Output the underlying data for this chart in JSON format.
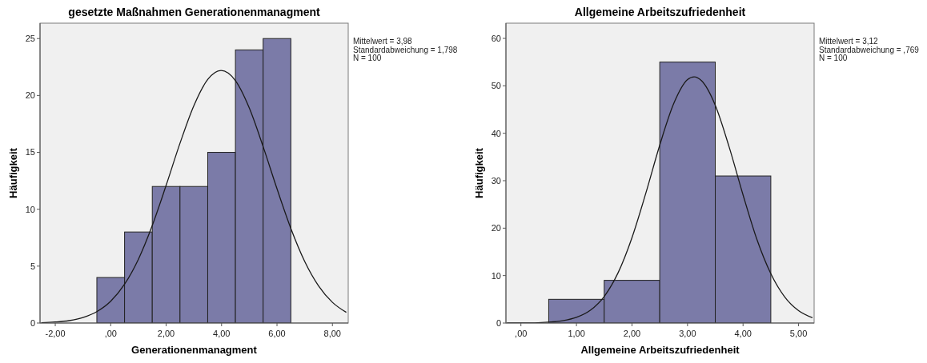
{
  "chart_data": [
    {
      "type": "histogram",
      "title": "gesetzte Maßnahmen Generationenmanagment",
      "xlabel": "Generationenmanagment",
      "ylabel": "Häufigkeit",
      "annotations": [
        "Mittelwert = 3,98",
        "Standardabweichung = 1,798",
        "N = 100"
      ],
      "bins": [
        -0.5,
        0.5,
        1.5,
        2.5,
        3.5,
        4.5,
        5.5,
        6.5
      ],
      "xlim": [
        -2.55,
        8.57
      ],
      "ylim": [
        0,
        26.35
      ],
      "xticks": [
        {
          "value": -2,
          "label": "-2,00"
        },
        {
          "value": 0,
          "label": ",00"
        },
        {
          "value": 2,
          "label": "2,00"
        },
        {
          "value": 4,
          "label": "4,00"
        },
        {
          "value": 6,
          "label": "6,00"
        },
        {
          "value": 8,
          "label": "8,00"
        }
      ],
      "yticks": [
        0,
        5,
        10,
        15,
        20,
        25
      ],
      "series": [
        {
          "color": "#7b7ba8",
          "values": [
            4,
            8,
            12,
            12,
            15,
            24,
            25
          ]
        },
        {
          "type": "line",
          "color": "#1a1a1a",
          "x": [
            -2.5,
            -2,
            -1.5,
            -1,
            -0.5,
            0,
            0.5,
            1,
            1.5,
            2,
            2.5,
            3,
            3.5,
            3.98,
            4.5,
            5,
            5.5,
            6,
            6.5,
            7,
            7.5,
            8,
            8.5
          ],
          "values": [
            0.03,
            0.09,
            0.21,
            0.48,
            1.0,
            1.91,
            3.41,
            5.61,
            8.57,
            12.1,
            15.8,
            19.1,
            21.4,
            22.19,
            21.3,
            18.9,
            15.5,
            11.8,
            8.31,
            5.41,
            3.26,
            1.82,
            0.94
          ]
        }
      ]
    },
    {
      "type": "histogram",
      "title": "Allgemeine Arbeitszufriedenheit",
      "xlabel": "Allgemeine Arbeitszufriedenheit",
      "ylabel": "Häufigkeit",
      "annotations": [
        "Mittelwert = 3,12",
        "Standardabweichung = ,769",
        "N = 100"
      ],
      "bins": [
        0.5,
        1.5,
        2.5,
        3.5,
        4.5
      ],
      "xlim": [
        -0.27,
        5.28
      ],
      "ylim": [
        0,
        63.2
      ],
      "xticks": [
        {
          "value": 0,
          "label": ",00"
        },
        {
          "value": 1,
          "label": "1,00"
        },
        {
          "value": 2,
          "label": "2,00"
        },
        {
          "value": 3,
          "label": "3,00"
        },
        {
          "value": 4,
          "label": "4,00"
        },
        {
          "value": 5,
          "label": "5,00"
        }
      ],
      "yticks": [
        0,
        10,
        20,
        30,
        40,
        50,
        60
      ],
      "series": [
        {
          "color": "#7b7ba8",
          "values": [
            5,
            9,
            55,
            31
          ]
        },
        {
          "type": "line",
          "color": "#1a1a1a",
          "x": [
            -0.25,
            0,
            0.5,
            0.75,
            1,
            1.25,
            1.5,
            1.75,
            2,
            2.25,
            2.5,
            2.75,
            3,
            3.12,
            3.25,
            3.5,
            3.75,
            4,
            4.25,
            4.5,
            4.75,
            5,
            5.25
          ],
          "values": [
            0.0,
            0.0,
            0.2,
            0.5,
            1.2,
            2.7,
            5.6,
            10.6,
            18.0,
            27.4,
            37.5,
            46.2,
            51.3,
            51.9,
            51.1,
            45.9,
            37.1,
            27.0,
            17.6,
            10.4,
            5.5,
            2.6,
            1.1
          ]
        }
      ]
    }
  ]
}
